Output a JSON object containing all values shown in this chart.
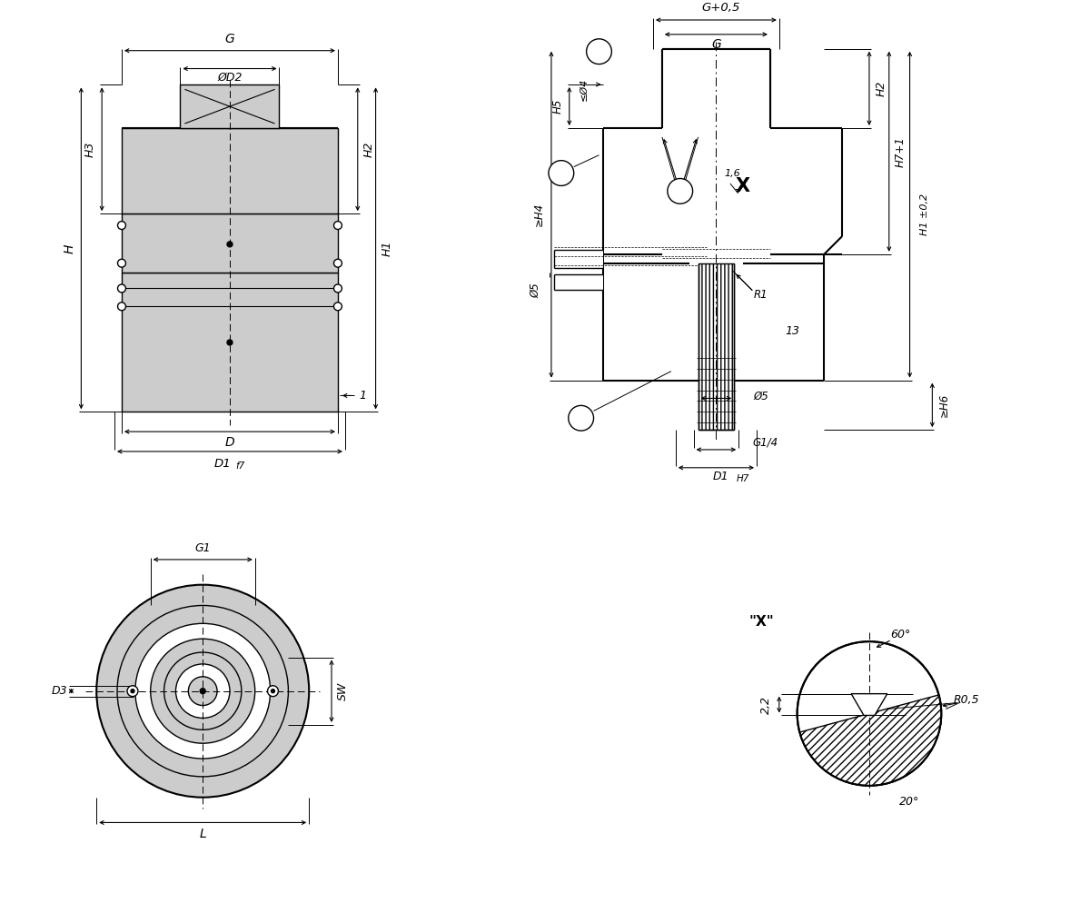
{
  "bg_color": "#ffffff",
  "line_color": "#000000",
  "fill_color": "#cccccc",
  "lw": 1.0,
  "lw_thick": 1.5,
  "dim_labels": {
    "G": "G",
    "G_tol": "G+0,5",
    "D2": "ØD2",
    "H": "H",
    "H1": "H1",
    "H2": "H2",
    "H3": "H3",
    "H4": "≥H4",
    "H5": "H5",
    "H6": "≥H6",
    "H7": "H7+1",
    "H1tol": "H1 ±0,2",
    "D": "D",
    "D1f7": "D1  f7",
    "D1H7": "D1  H7",
    "G1": "G1",
    "D3": "D3",
    "SW": "SW",
    "L": "L",
    "phi4": "≤Ø4",
    "phi5_1": "Ø5",
    "phi5_2": "Ø5",
    "G14": "G1/4",
    "R1": "R1",
    "R05": "R0,5",
    "label16": "1,6",
    "label13": "13",
    "angle60": "60°",
    "angle20": "20°",
    "dim22": "2,2",
    "label1": "1"
  },
  "label_X": "X",
  "label_Xquote": "\"X\""
}
